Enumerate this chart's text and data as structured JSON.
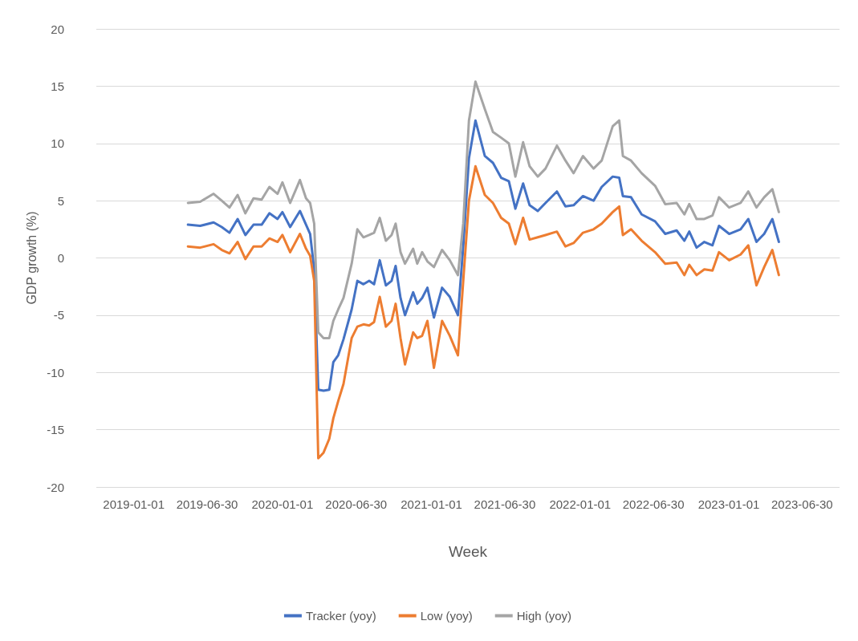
{
  "chart_data": {
    "type": "line",
    "xlabel": "Week",
    "ylabel": "GDP growth (%)",
    "xlim": [
      "2018-10-01",
      "2023-09-30"
    ],
    "xticks": [
      "2019-01-01",
      "2019-06-30",
      "2020-01-01",
      "2020-06-30",
      "2021-01-01",
      "2021-06-30",
      "2022-01-01",
      "2022-06-30",
      "2023-01-01",
      "2023-06-30"
    ],
    "ylim": [
      -20,
      20
    ],
    "yticks": [
      -20,
      -15,
      -10,
      -5,
      0,
      5,
      10,
      15,
      20
    ],
    "grid": "y",
    "legend": "bottom",
    "marker": "none",
    "x": [
      "2019-05-14",
      "2019-06-13",
      "2019-07-16",
      "2019-08-05",
      "2019-08-24",
      "2019-09-13",
      "2019-10-02",
      "2019-10-22",
      "2019-11-11",
      "2019-11-30",
      "2019-12-20",
      "2020-01-01",
      "2020-01-20",
      "2020-02-13",
      "2020-02-28",
      "2020-03-09",
      "2020-03-19",
      "2020-03-29",
      "2020-04-11",
      "2020-04-25",
      "2020-05-05",
      "2020-05-17",
      "2020-05-30",
      "2020-06-19",
      "2020-07-03",
      "2020-07-18",
      "2020-08-01",
      "2020-08-13",
      "2020-08-27",
      "2020-09-11",
      "2020-09-25",
      "2020-10-05",
      "2020-10-17",
      "2020-10-28",
      "2020-11-17",
      "2020-11-27",
      "2020-12-09",
      "2020-12-22",
      "2021-01-07",
      "2021-01-27",
      "2021-02-15",
      "2021-03-07",
      "2021-03-20",
      "2021-04-03",
      "2021-04-19",
      "2021-05-12",
      "2021-06-01",
      "2021-06-21",
      "2021-07-10",
      "2021-07-26",
      "2021-08-14",
      "2021-08-30",
      "2021-09-19",
      "2021-10-08",
      "2021-11-05",
      "2021-11-26",
      "2021-12-16",
      "2022-01-08",
      "2022-02-03",
      "2022-02-23",
      "2022-03-22",
      "2022-04-07",
      "2022-04-16",
      "2022-05-06",
      "2022-06-01",
      "2022-07-04",
      "2022-07-29",
      "2022-08-26",
      "2022-09-14",
      "2022-09-26",
      "2022-10-14",
      "2022-11-02",
      "2022-11-22",
      "2022-12-08",
      "2023-01-02",
      "2023-01-30",
      "2023-02-18",
      "2023-03-10",
      "2023-03-29",
      "2023-04-18",
      "2023-05-04"
    ],
    "series": [
      {
        "name": "Tracker (yoy)",
        "color": "#4472c4",
        "values": [
          2.9,
          2.8,
          3.1,
          2.7,
          2.2,
          3.4,
          2.0,
          2.9,
          2.9,
          3.9,
          3.4,
          4.0,
          2.7,
          4.1,
          2.9,
          2.1,
          -1.0,
          -11.5,
          -11.6,
          -11.5,
          -9.1,
          -8.5,
          -7.1,
          -4.5,
          -2.0,
          -2.3,
          -2.0,
          -2.3,
          -0.2,
          -2.4,
          -2.0,
          -0.7,
          -3.5,
          -5.0,
          -3.0,
          -4.0,
          -3.5,
          -2.6,
          -5.2,
          -2.6,
          -3.4,
          -5.0,
          1.0,
          8.7,
          12.0,
          8.9,
          8.3,
          7.0,
          6.7,
          4.3,
          6.5,
          4.6,
          4.1,
          4.8,
          5.8,
          4.5,
          4.6,
          5.4,
          5.0,
          6.2,
          7.1,
          7.0,
          5.4,
          5.3,
          3.8,
          3.2,
          2.1,
          2.4,
          1.5,
          2.3,
          0.9,
          1.4,
          1.1,
          2.8,
          2.1,
          2.5,
          3.4,
          1.4,
          2.1,
          3.4,
          1.4
        ]
      },
      {
        "name": "Low (yoy)",
        "color": "#ed7d31",
        "values": [
          1.0,
          0.9,
          1.2,
          0.7,
          0.4,
          1.4,
          -0.1,
          1.0,
          1.0,
          1.7,
          1.4,
          2.0,
          0.5,
          2.1,
          0.8,
          0.2,
          -2.0,
          -17.5,
          -17.0,
          -15.8,
          -14.0,
          -12.5,
          -11.0,
          -7.0,
          -6.0,
          -5.8,
          -5.9,
          -5.6,
          -3.4,
          -6.0,
          -5.5,
          -4.0,
          -7.0,
          -9.3,
          -6.5,
          -7.0,
          -6.8,
          -5.5,
          -9.6,
          -5.5,
          -6.8,
          -8.5,
          -2.0,
          5.0,
          8.0,
          5.5,
          4.8,
          3.5,
          3.0,
          1.2,
          3.5,
          1.6,
          1.8,
          2.0,
          2.3,
          1.0,
          1.3,
          2.2,
          2.5,
          3.0,
          4.0,
          4.5,
          2.0,
          2.5,
          1.5,
          0.5,
          -0.5,
          -0.4,
          -1.5,
          -0.6,
          -1.5,
          -1.0,
          -1.1,
          0.5,
          -0.2,
          0.3,
          1.1,
          -2.4,
          -0.8,
          0.7,
          -1.5
        ]
      },
      {
        "name": "High (yoy)",
        "color": "#a5a5a5",
        "values": [
          4.8,
          4.9,
          5.6,
          5.0,
          4.4,
          5.5,
          3.9,
          5.2,
          5.1,
          6.2,
          5.6,
          6.6,
          4.8,
          6.8,
          5.2,
          4.8,
          3.0,
          -6.5,
          -7.0,
          -7.0,
          -5.5,
          -4.5,
          -3.5,
          -0.5,
          2.5,
          1.8,
          2.0,
          2.2,
          3.5,
          1.5,
          2.0,
          3.0,
          0.5,
          -0.5,
          0.8,
          -0.5,
          0.5,
          -0.3,
          -0.8,
          0.7,
          -0.2,
          -1.5,
          3.0,
          12.0,
          15.4,
          13.0,
          11.0,
          10.5,
          10.0,
          7.1,
          10.1,
          8.0,
          7.1,
          7.8,
          9.8,
          8.5,
          7.4,
          8.9,
          7.8,
          8.5,
          11.5,
          12.0,
          8.9,
          8.5,
          7.4,
          6.3,
          4.7,
          4.8,
          3.8,
          4.7,
          3.4,
          3.4,
          3.7,
          5.3,
          4.4,
          4.8,
          5.8,
          4.4,
          5.3,
          6.0,
          4.0
        ]
      }
    ]
  }
}
